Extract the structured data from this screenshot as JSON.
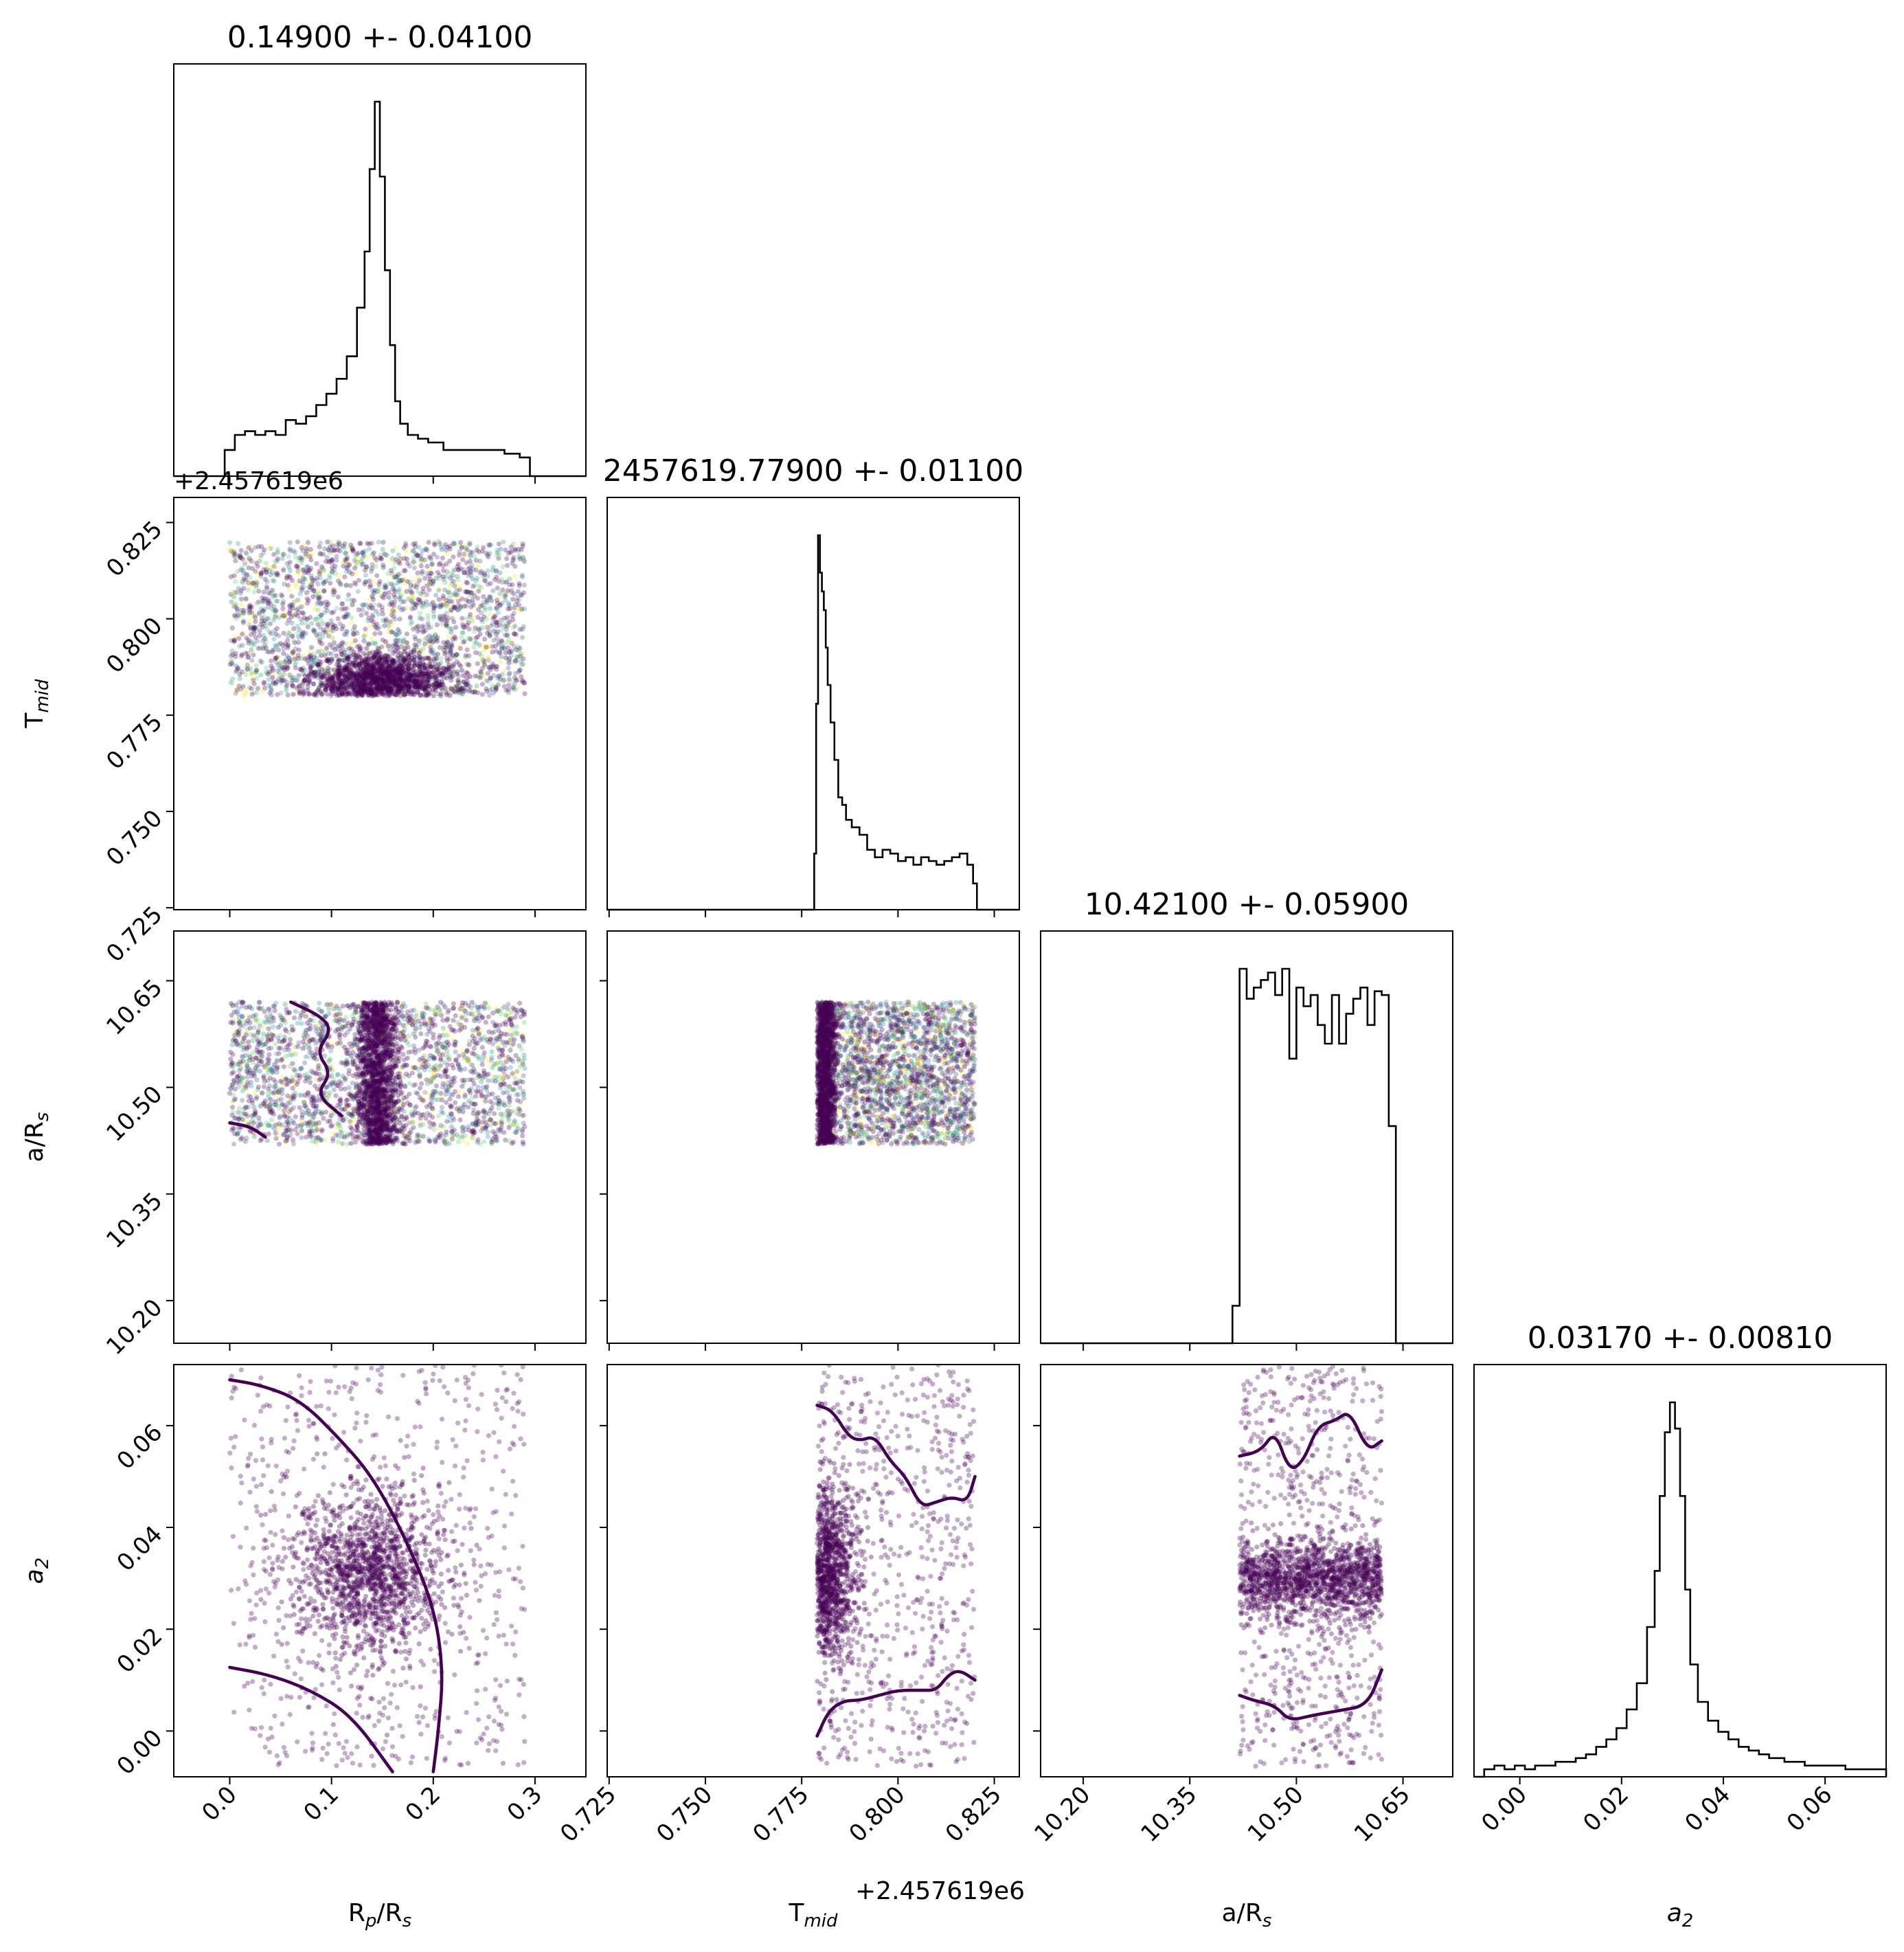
{
  "chart_data": {
    "type": "scatter",
    "kind": "corner-plot",
    "parameters": [
      {
        "key": "rp",
        "label": "R",
        "label_sub": "p",
        "label_rest": "/R",
        "label_sub2": "s",
        "title": "0.14900 +- 0.04100",
        "range": [
          -0.055,
          0.35
        ],
        "ticks": [
          0.0,
          0.1,
          0.2,
          0.3
        ],
        "tick_labels": [
          "0.0",
          "0.1",
          "0.2",
          "0.3"
        ]
      },
      {
        "key": "tmid",
        "label": "T",
        "label_sub": "mid",
        "label_rest": "",
        "label_sub2": "",
        "title": "2457619.77900 +- 0.01100",
        "offset_label": "+2.457619e6",
        "range": [
          0.7245,
          0.8315
        ],
        "ticks": [
          0.725,
          0.75,
          0.775,
          0.8,
          0.825
        ],
        "tick_labels": [
          "0.725",
          "0.750",
          "0.775",
          "0.800",
          "0.825"
        ]
      },
      {
        "key": "ars",
        "label": "a/R",
        "label_sub": "s",
        "label_rest": "",
        "label_sub2": "",
        "title": "10.42100 +- 0.05900",
        "range": [
          10.14,
          10.72
        ],
        "ticks": [
          10.2,
          10.35,
          10.5,
          10.65
        ],
        "tick_labels": [
          "10.20",
          "10.35",
          "10.50",
          "10.65"
        ]
      },
      {
        "key": "a2",
        "label": "a",
        "label_sub": "2",
        "label_rest": "",
        "label_sub2": "",
        "italic": true,
        "title": "0.03170 +- 0.00810",
        "range": [
          -0.009,
          0.072
        ],
        "ticks": [
          0.0,
          0.02,
          0.04,
          0.06
        ],
        "tick_labels": [
          "0.00",
          "0.02",
          "0.04",
          "0.06"
        ]
      }
    ],
    "histograms": {
      "rp": {
        "x": [
          0.0,
          0.01,
          0.02,
          0.03,
          0.04,
          0.05,
          0.06,
          0.07,
          0.08,
          0.09,
          0.1,
          0.11,
          0.12,
          0.13,
          0.135,
          0.14,
          0.145,
          0.15,
          0.155,
          0.16,
          0.165,
          0.17,
          0.18,
          0.19,
          0.2,
          0.22,
          0.24,
          0.26,
          0.28,
          0.29
        ],
        "y": [
          0.07,
          0.11,
          0.12,
          0.11,
          0.12,
          0.11,
          0.15,
          0.14,
          0.16,
          0.19,
          0.22,
          0.26,
          0.32,
          0.45,
          0.6,
          0.82,
          1.0,
          0.8,
          0.55,
          0.35,
          0.2,
          0.14,
          0.11,
          0.1,
          0.09,
          0.07,
          0.07,
          0.07,
          0.06,
          0.05
        ]
      },
      "tmid": {
        "x": [
          0.7785,
          0.779,
          0.7795,
          0.78,
          0.7805,
          0.781,
          0.7815,
          0.782,
          0.783,
          0.784,
          0.785,
          0.786,
          0.787,
          0.789,
          0.791,
          0.793,
          0.795,
          0.797,
          0.799,
          0.801,
          0.803,
          0.805,
          0.807,
          0.809,
          0.811,
          0.813,
          0.815,
          0.817,
          0.819,
          0.82
        ],
        "y": [
          0.15,
          0.55,
          1.0,
          0.9,
          0.85,
          0.8,
          0.7,
          0.6,
          0.5,
          0.4,
          0.3,
          0.28,
          0.24,
          0.22,
          0.2,
          0.16,
          0.14,
          0.16,
          0.15,
          0.13,
          0.14,
          0.12,
          0.14,
          0.13,
          0.12,
          0.13,
          0.14,
          0.15,
          0.12,
          0.07
        ]
      },
      "ars": {
        "x": [
          10.415,
          10.425,
          10.435,
          10.445,
          10.455,
          10.465,
          10.475,
          10.485,
          10.495,
          10.505,
          10.515,
          10.525,
          10.535,
          10.545,
          10.555,
          10.565,
          10.575,
          10.585,
          10.595,
          10.605,
          10.615,
          10.625,
          10.635
        ],
        "y": [
          0.1,
          1.0,
          0.92,
          0.95,
          0.97,
          0.99,
          0.93,
          1.0,
          0.76,
          0.95,
          0.9,
          0.93,
          0.85,
          0.8,
          0.93,
          0.8,
          0.88,
          0.92,
          0.95,
          0.85,
          0.94,
          0.93,
          0.58
        ]
      },
      "a2": {
        "x": [
          -0.006,
          -0.004,
          -0.002,
          0.0,
          0.002,
          0.004,
          0.006,
          0.008,
          0.01,
          0.012,
          0.014,
          0.016,
          0.018,
          0.02,
          0.022,
          0.024,
          0.026,
          0.027,
          0.028,
          0.029,
          0.03,
          0.031,
          0.032,
          0.033,
          0.034,
          0.036,
          0.038,
          0.04,
          0.042,
          0.044,
          0.046,
          0.048,
          0.05,
          0.054,
          0.058,
          0.062,
          0.066,
          0.07
        ],
        "y": [
          0.02,
          0.03,
          0.02,
          0.03,
          0.02,
          0.03,
          0.03,
          0.04,
          0.04,
          0.05,
          0.06,
          0.08,
          0.1,
          0.13,
          0.18,
          0.25,
          0.4,
          0.55,
          0.75,
          0.92,
          1.0,
          0.93,
          0.75,
          0.5,
          0.3,
          0.2,
          0.15,
          0.12,
          0.1,
          0.08,
          0.07,
          0.06,
          0.05,
          0.04,
          0.03,
          0.03,
          0.02,
          0.02
        ]
      }
    },
    "scatter_panels": [
      {
        "x": "rp",
        "y": "tmid",
        "x_bounds": [
          0.0,
          0.29
        ],
        "y_bounds": [
          0.78,
          0.82
        ],
        "core": [
          0.15,
          0.784
        ],
        "core_spread": [
          0.035,
          0.0035
        ],
        "colored": true
      },
      {
        "x": "rp",
        "y": "ars",
        "x_bounds": [
          0.0,
          0.29
        ],
        "y_bounds": [
          10.42,
          10.62
        ],
        "core_band": "x",
        "core": [
          0.145,
          10.52
        ],
        "core_spread": [
          0.01,
          0.1
        ],
        "colored": true
      },
      {
        "x": "tmid",
        "y": "ars",
        "x_bounds": [
          0.779,
          0.82
        ],
        "y_bounds": [
          10.42,
          10.62
        ],
        "core_band": "x",
        "core": [
          0.781,
          10.52
        ],
        "core_spread": [
          0.0015,
          0.1
        ],
        "colored": true
      },
      {
        "x": "rp",
        "y": "a2",
        "x_bounds": [
          0.0,
          0.29
        ],
        "y_bounds": [
          -0.007,
          0.072
        ],
        "core": [
          0.14,
          0.031
        ],
        "core_spread": [
          0.035,
          0.008
        ],
        "colored": false
      },
      {
        "x": "tmid",
        "y": "a2",
        "x_bounds": [
          0.779,
          0.82
        ],
        "y_bounds": [
          -0.007,
          0.072
        ],
        "core": [
          0.781,
          0.031
        ],
        "core_spread": [
          0.004,
          0.008
        ],
        "colored": false
      },
      {
        "x": "ars",
        "y": "a2",
        "x_bounds": [
          10.42,
          10.62
        ],
        "y_bounds": [
          -0.007,
          0.072
        ],
        "core_band": "y",
        "core": [
          10.52,
          0.03
        ],
        "core_spread": [
          0.1,
          0.004
        ],
        "colored": false
      }
    ],
    "contours": [
      {
        "x": "rp",
        "y": "ars",
        "lines": [
          [
            [
              0.06,
              10.62
            ],
            [
              0.09,
              10.6
            ],
            [
              0.1,
              10.58
            ],
            [
              0.085,
              10.55
            ],
            [
              0.1,
              10.52
            ],
            [
              0.085,
              10.49
            ],
            [
              0.11,
              10.46
            ]
          ],
          [
            [
              0.0,
              10.45
            ],
            [
              0.02,
              10.445
            ],
            [
              0.035,
              10.43
            ]
          ]
        ]
      },
      {
        "x": "rp",
        "y": "a2",
        "lines": [
          [
            [
              0.0,
              0.069
            ],
            [
              0.03,
              0.068
            ],
            [
              0.07,
              0.065
            ],
            [
              0.11,
              0.057
            ],
            [
              0.14,
              0.05
            ],
            [
              0.17,
              0.039
            ],
            [
              0.2,
              0.025
            ],
            [
              0.21,
              0.012
            ],
            [
              0.205,
              0.0
            ],
            [
              0.2,
              -0.008
            ]
          ],
          [
            [
              0.0,
              0.0125
            ],
            [
              0.04,
              0.011
            ],
            [
              0.08,
              0.008
            ],
            [
              0.12,
              0.003
            ],
            [
              0.16,
              -0.008
            ]
          ]
        ]
      },
      {
        "x": "tmid",
        "y": "a2",
        "lines": [
          [
            [
              0.779,
              0.064
            ],
            [
              0.783,
              0.063
            ],
            [
              0.787,
              0.058
            ],
            [
              0.79,
              0.057
            ],
            [
              0.794,
              0.058
            ],
            [
              0.798,
              0.053
            ],
            [
              0.802,
              0.05
            ],
            [
              0.806,
              0.044
            ],
            [
              0.81,
              0.045
            ],
            [
              0.814,
              0.046
            ],
            [
              0.818,
              0.045
            ],
            [
              0.82,
              0.05
            ]
          ],
          [
            [
              0.779,
              -0.001
            ],
            [
              0.782,
              0.004
            ],
            [
              0.786,
              0.006
            ],
            [
              0.79,
              0.006
            ],
            [
              0.795,
              0.007
            ],
            [
              0.8,
              0.008
            ],
            [
              0.806,
              0.008
            ],
            [
              0.81,
              0.008
            ],
            [
              0.813,
              0.011
            ],
            [
              0.816,
              0.012
            ],
            [
              0.82,
              0.01
            ]
          ]
        ]
      },
      {
        "x": "ars",
        "y": "a2",
        "lines": [
          [
            [
              10.42,
              0.054
            ],
            [
              10.45,
              0.055
            ],
            [
              10.47,
              0.059
            ],
            [
              10.49,
              0.051
            ],
            [
              10.51,
              0.053
            ],
            [
              10.53,
              0.06
            ],
            [
              10.555,
              0.061
            ],
            [
              10.575,
              0.063
            ],
            [
              10.6,
              0.055
            ],
            [
              10.62,
              0.057
            ]
          ],
          [
            [
              10.42,
              0.007
            ],
            [
              10.44,
              0.006
            ],
            [
              10.47,
              0.005
            ],
            [
              10.49,
              0.002
            ],
            [
              10.52,
              0.003
            ],
            [
              10.56,
              0.004
            ],
            [
              10.6,
              0.005
            ],
            [
              10.62,
              0.012
            ]
          ]
        ]
      }
    ],
    "colors": {
      "frame": "#000000",
      "contour": "#440154",
      "points": [
        "#440154",
        "#3b528b",
        "#21918c",
        "#5ec962",
        "#fde725"
      ]
    }
  }
}
